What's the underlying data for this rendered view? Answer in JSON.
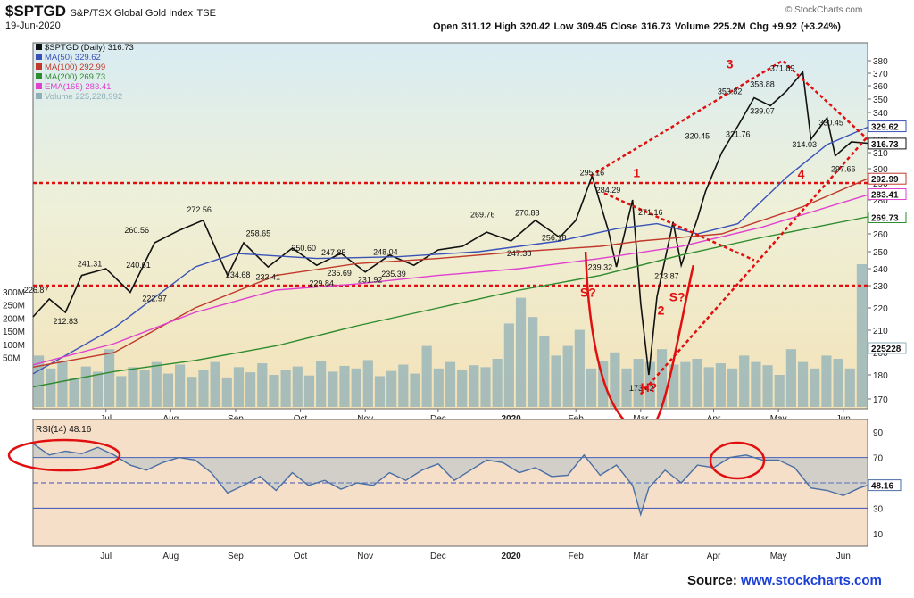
{
  "header": {
    "symbol": "$SPTGD",
    "name": "S&P/TSX Global Gold Index",
    "exchange": "TSE",
    "date": "19-Jun-2020",
    "ohlc": "Open 311.12  High 320.42  Low 309.45  Close 316.73  Volume 225.2M  Chg +9.92 (+3.24%)",
    "watermark": "© StockCharts.com"
  },
  "source": {
    "label": "Source:",
    "url": "www.stockcharts.com"
  },
  "colors": {
    "price": "#111111",
    "ma50": "#3a52b8",
    "ma100": "#c0392b",
    "ma200": "#2e8b2e",
    "ema165": "#e040d0",
    "volume": "#8fb0b8",
    "rsi": "#4a6fa5",
    "annot": "#e01010"
  },
  "chart_data": [
    {
      "type": "line",
      "title": "$SPTGD S&P/TSX Global Gold Index TSE",
      "legend": [
        {
          "key": "price",
          "label": "$SPTGD (Daily) 316.73"
        },
        {
          "key": "ma50",
          "label": "MA(50) 329.62"
        },
        {
          "key": "ma100",
          "label": "MA(100) 292.99"
        },
        {
          "key": "ma200",
          "label": "MA(200) 269.73"
        },
        {
          "key": "ema165",
          "label": "EMA(165) 283.41"
        },
        {
          "key": "volume",
          "label": "Volume 225,228,992"
        }
      ],
      "legend_position": "top-left",
      "x_labels": [
        "Jul",
        "Aug",
        "Sep",
        "Oct",
        "Nov",
        "Dec",
        "2020",
        "Feb",
        "Mar",
        "Apr",
        "May",
        "Jun"
      ],
      "x_label_pos": [
        2019.54,
        2019.62,
        2019.7,
        2019.78,
        2019.86,
        2019.95,
        2020.04,
        2020.12,
        2020.2,
        2020.29,
        2020.37,
        2020.45
      ],
      "x_range": [
        2019.45,
        2020.48
      ],
      "y_ticks": [
        170,
        180,
        200,
        210,
        220,
        230,
        240,
        250,
        260,
        270,
        280,
        290,
        300,
        310,
        320,
        330,
        340,
        350,
        360,
        370,
        380
      ],
      "volume_ticks": [
        "300M",
        "250M",
        "200M",
        "150M",
        "100M",
        "50M"
      ],
      "grid": false,
      "series": [
        {
          "key": "price",
          "name": "$SPTGD (Daily)",
          "x": [
            2019.45,
            2019.47,
            2019.49,
            2019.51,
            2019.54,
            2019.57,
            2019.6,
            2019.63,
            2019.66,
            2019.69,
            2019.71,
            2019.74,
            2019.77,
            2019.8,
            2019.83,
            2019.86,
            2019.89,
            2019.92,
            2019.95,
            2019.98,
            2020.01,
            2020.04,
            2020.07,
            2020.1,
            2020.12,
            2020.14,
            2020.16,
            2020.17,
            2020.19,
            2020.2,
            2020.21,
            2020.22,
            2020.24,
            2020.25,
            2020.27,
            2020.28,
            2020.3,
            2020.32,
            2020.34,
            2020.36,
            2020.38,
            2020.4,
            2020.41,
            2020.43,
            2020.44,
            2020.46,
            2020.48
          ],
          "y": [
            216,
            224,
            218,
            236,
            240,
            227,
            255,
            262,
            268,
            236,
            255,
            241,
            252,
            242,
            249,
            238,
            248,
            242,
            251,
            253,
            261,
            256,
            268,
            258,
            268,
            295,
            262,
            241,
            280,
            222,
            180,
            225,
            267,
            242,
            269,
            285,
            310,
            330,
            351,
            345,
            356,
            371,
            320,
            336,
            308,
            318,
            317
          ]
        },
        {
          "key": "ma50",
          "name": "MA(50)",
          "x": [
            2019.45,
            2019.55,
            2019.65,
            2019.7,
            2019.8,
            2019.9,
            2020.0,
            2020.1,
            2020.17,
            2020.22,
            2020.27,
            2020.32,
            2020.38,
            2020.43,
            2020.48
          ],
          "y": [
            181,
            211,
            241,
            249,
            246,
            247,
            250,
            256,
            263,
            266,
            260,
            266,
            294,
            316,
            329
          ]
        },
        {
          "key": "ma100",
          "name": "MA(100)",
          "x": [
            2019.45,
            2019.55,
            2019.65,
            2019.75,
            2019.85,
            2019.95,
            2020.05,
            2020.15,
            2020.2,
            2020.3,
            2020.4,
            2020.48
          ],
          "y": [
            187,
            200,
            220,
            236,
            243,
            246,
            250,
            253,
            256,
            260,
            276,
            293
          ]
        },
        {
          "key": "ma200",
          "name": "MA(200)",
          "x": [
            2019.45,
            2019.55,
            2019.65,
            2019.75,
            2019.85,
            2019.95,
            2020.05,
            2020.15,
            2020.25,
            2020.35,
            2020.48
          ],
          "y": [
            175,
            183,
            193,
            203,
            212,
            220,
            228,
            236,
            248,
            258,
            270
          ]
        },
        {
          "key": "ema165",
          "name": "EMA(165)",
          "x": [
            2019.45,
            2019.55,
            2019.65,
            2019.75,
            2019.85,
            2019.95,
            2020.05,
            2020.15,
            2020.25,
            2020.35,
            2020.48
          ],
          "y": [
            189,
            204,
            218,
            228,
            231,
            236,
            240,
            246,
            253,
            264,
            283
          ]
        }
      ],
      "volume_m": [
        80,
        60,
        72,
        45,
        63,
        55,
        90,
        48,
        62,
        58,
        70,
        52,
        66,
        47,
        58,
        70,
        46,
        62,
        54,
        68,
        50,
        57,
        63,
        49,
        71,
        55,
        64,
        60,
        73,
        48,
        56,
        66,
        52,
        95,
        60,
        70,
        58,
        65,
        62,
        75,
        130,
        170,
        140,
        110,
        80,
        95,
        120,
        60,
        72,
        85,
        60,
        75,
        70,
        90,
        66,
        70,
        75,
        62,
        68,
        60,
        80,
        70,
        65,
        50,
        90,
        70,
        60,
        80,
        75,
        60,
        225
      ],
      "resistance_y": 290,
      "support_y": 230,
      "price_labels": [
        {
          "x": 2019.454,
          "y": 226.87,
          "t": "226.87"
        },
        {
          "x": 2019.49,
          "y": 212.83,
          "t": "212.83"
        },
        {
          "x": 2019.52,
          "y": 241.31,
          "t": "241.31"
        },
        {
          "x": 2019.578,
          "y": 260.56,
          "t": "260.56"
        },
        {
          "x": 2019.58,
          "y": 240.61,
          "t": "240.61"
        },
        {
          "x": 2019.6,
          "y": 222.97,
          "t": "222.97"
        },
        {
          "x": 2019.655,
          "y": 272.56,
          "t": "272.56"
        },
        {
          "x": 2019.703,
          "y": 234.68,
          "t": "234.68"
        },
        {
          "x": 2019.728,
          "y": 258.65,
          "t": "258.65"
        },
        {
          "x": 2019.74,
          "y": 233.41,
          "t": "233.41"
        },
        {
          "x": 2019.784,
          "y": 250.6,
          "t": "250.60"
        },
        {
          "x": 2019.806,
          "y": 229.84,
          "t": "229.84"
        },
        {
          "x": 2019.821,
          "y": 247.85,
          "t": "247.85"
        },
        {
          "x": 2019.828,
          "y": 235.69,
          "t": "235.69"
        },
        {
          "x": 2019.866,
          "y": 231.92,
          "t": "231.92"
        },
        {
          "x": 2019.885,
          "y": 248.04,
          "t": "248.04"
        },
        {
          "x": 2019.895,
          "y": 235.39,
          "t": "235.39"
        },
        {
          "x": 2020.005,
          "y": 269.76,
          "t": "269.76"
        },
        {
          "x": 2020.05,
          "y": 247.38,
          "t": "247.38"
        },
        {
          "x": 2020.06,
          "y": 270.88,
          "t": "270.88"
        },
        {
          "x": 2020.093,
          "y": 256.18,
          "t": "256.18"
        },
        {
          "x": 2020.14,
          "y": 295.16,
          "t": "295.16"
        },
        {
          "x": 2020.16,
          "y": 284.29,
          "t": "284.29"
        },
        {
          "x": 2020.15,
          "y": 239.32,
          "t": "239.32"
        },
        {
          "x": 2020.212,
          "y": 271.16,
          "t": "271.16"
        },
        {
          "x": 2020.232,
          "y": 233.87,
          "t": "233.87"
        },
        {
          "x": 2020.201,
          "y": 173.42,
          "t": "173.42"
        },
        {
          "x": 2020.27,
          "y": 320.45,
          "t": "320.45"
        },
        {
          "x": 2020.32,
          "y": 321.76,
          "t": "321.76"
        },
        {
          "x": 2020.31,
          "y": 353.82,
          "t": "353.82"
        },
        {
          "x": 2020.35,
          "y": 339.07,
          "t": "339.07"
        },
        {
          "x": 2020.35,
          "y": 358.88,
          "t": "358.88"
        },
        {
          "x": 2020.375,
          "y": 371.89,
          "t": "371.89"
        },
        {
          "x": 2020.402,
          "y": 314.03,
          "t": "314.03"
        },
        {
          "x": 2020.435,
          "y": 330.45,
          "t": "330.45"
        },
        {
          "x": 2020.45,
          "y": 297.66,
          "t": "297.66"
        }
      ],
      "right_tags": [
        {
          "y": 329.62,
          "t": "329.62",
          "key": "ma50"
        },
        {
          "y": 316.73,
          "t": "316.73",
          "key": "price"
        },
        {
          "y": 292.99,
          "t": "292.99",
          "key": "ma100"
        },
        {
          "y": 283.41,
          "t": "283.41",
          "key": "ema165"
        },
        {
          "y": 269.73,
          "t": "269.73",
          "key": "ma200"
        },
        {
          "y": 202,
          "t": "225228",
          "key": "volume"
        }
      ],
      "annotations": [
        {
          "x": 2020.135,
          "y": 225,
          "t": "S?"
        },
        {
          "x": 2020.245,
          "y": 223,
          "t": "S?"
        },
        {
          "x": 2020.225,
          "y": 217,
          "t": "2"
        },
        {
          "x": 2020.21,
          "y": 173,
          "t": "H?"
        },
        {
          "x": 2020.195,
          "y": 294,
          "t": "1"
        },
        {
          "x": 2020.31,
          "y": 374,
          "t": "3"
        },
        {
          "x": 2020.398,
          "y": 293,
          "t": "4"
        }
      ]
    },
    {
      "type": "line",
      "title": "RSI(14) 48.16",
      "x_range": [
        2019.45,
        2020.48
      ],
      "ylim": [
        0,
        100
      ],
      "y_ticks": [
        90,
        70,
        50,
        30,
        10
      ],
      "levels": [
        70,
        50,
        30
      ],
      "last_tag": "48.16",
      "series": [
        {
          "key": "rsi",
          "name": "RSI(14)",
          "x": [
            2019.45,
            2019.47,
            2019.49,
            2019.51,
            2019.53,
            2019.55,
            2019.57,
            2019.59,
            2019.61,
            2019.63,
            2019.65,
            2019.67,
            2019.69,
            2019.71,
            2019.73,
            2019.75,
            2019.77,
            2019.79,
            2019.81,
            2019.83,
            2019.85,
            2019.87,
            2019.89,
            2019.91,
            2019.93,
            2019.95,
            2019.97,
            2019.99,
            2020.01,
            2020.03,
            2020.05,
            2020.07,
            2020.09,
            2020.11,
            2020.13,
            2020.15,
            2020.17,
            2020.19,
            2020.2,
            2020.21,
            2020.23,
            2020.25,
            2020.27,
            2020.29,
            2020.31,
            2020.33,
            2020.35,
            2020.37,
            2020.39,
            2020.41,
            2020.43,
            2020.45,
            2020.47,
            2020.48
          ],
          "y": [
            81,
            72,
            75,
            73,
            78,
            72,
            64,
            60,
            66,
            70,
            68,
            58,
            42,
            48,
            55,
            44,
            58,
            48,
            52,
            45,
            50,
            48,
            58,
            52,
            60,
            65,
            52,
            60,
            68,
            66,
            58,
            62,
            55,
            56,
            72,
            56,
            64,
            48,
            25,
            46,
            60,
            50,
            64,
            62,
            70,
            72,
            68,
            68,
            62,
            46,
            44,
            40,
            46,
            48
          ]
        }
      ]
    }
  ]
}
